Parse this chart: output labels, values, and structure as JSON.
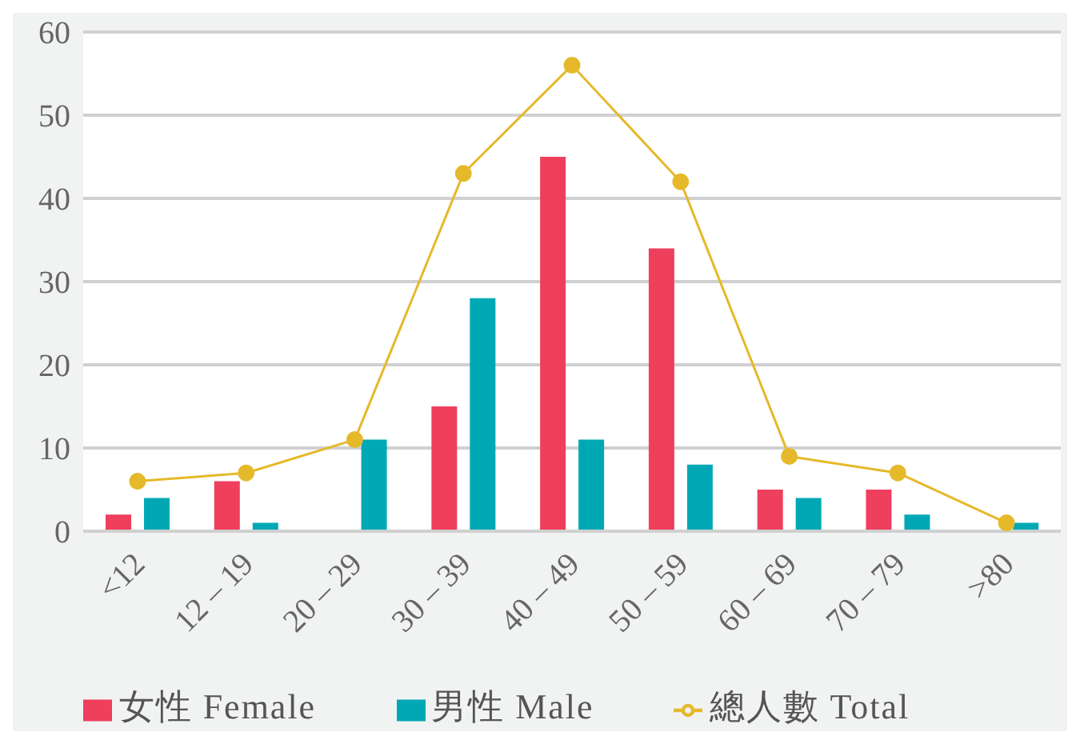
{
  "chart_data": {
    "type": "bar",
    "categories": [
      "<12",
      "12 – 19",
      "20 – 29",
      "30 – 39",
      "40 – 49",
      "50 – 59",
      "60 – 69",
      "70 – 79",
      ">80"
    ],
    "series": [
      {
        "name": "女性 Female",
        "color": "#ee3f5c",
        "values": [
          2,
          6,
          0,
          15,
          45,
          34,
          5,
          5,
          0
        ]
      },
      {
        "name": "男性 Male",
        "color": "#00a8b5",
        "values": [
          4,
          1,
          11,
          28,
          11,
          8,
          4,
          2,
          1
        ]
      },
      {
        "name": "總人數 Total",
        "type": "line",
        "color": "#e5b92a",
        "values": [
          6,
          7,
          11,
          43,
          56,
          42,
          9,
          7,
          1
        ]
      }
    ],
    "ylim": [
      0,
      60
    ],
    "yticks": [
      0,
      10,
      20,
      30,
      40,
      50,
      60
    ],
    "grid": "y",
    "legend": "bottom",
    "marker": "circle"
  }
}
